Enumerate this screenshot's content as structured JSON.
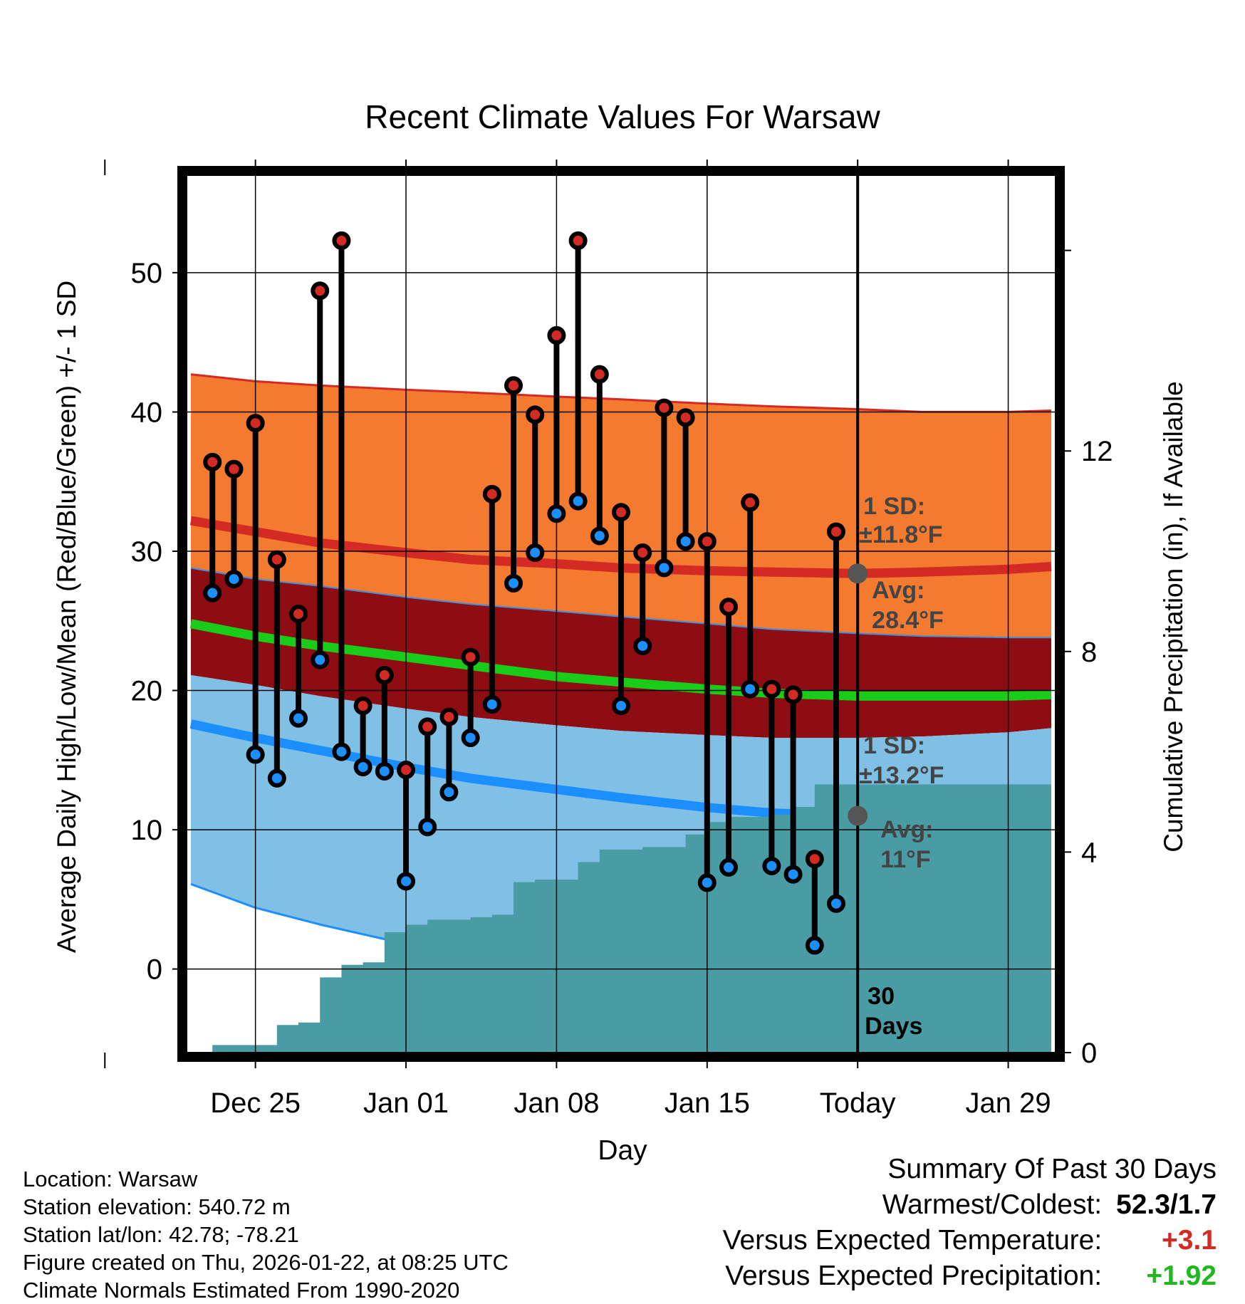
{
  "chart_data": {
    "type": "line",
    "title": "Recent Climate Values For Warsaw",
    "xlabel": "Day",
    "ylabel": "Average Daily High/Low/Mean (Red/Blue/Green) +/- 1 SD",
    "y2label": "Cumulative Precipitation (in), If Available",
    "xlim": [
      -3.2,
      37.2
    ],
    "ylim": [
      -6,
      57
    ],
    "y2lim": [
      0,
      17.5
    ],
    "yticks": [
      "0",
      "10",
      "20",
      "30",
      "40",
      "50"
    ],
    "y2ticks": [
      "0",
      "4",
      "8",
      "12"
    ],
    "xtick_labels": [
      {
        "day": 0,
        "label": "Dec 25"
      },
      {
        "day": 7,
        "label": "Jan 01"
      },
      {
        "day": 14,
        "label": "Jan 08"
      },
      {
        "day": 21,
        "label": "Jan 15"
      },
      {
        "day": 28,
        "label": "Today"
      },
      {
        "day": 35,
        "label": "Jan 29"
      }
    ],
    "daily_obs": {
      "days": [
        -2,
        -1,
        0,
        1,
        2,
        3,
        4,
        5,
        6,
        7,
        8,
        9,
        10,
        11,
        12,
        13,
        14,
        15,
        16,
        17,
        18,
        19,
        20,
        21,
        22,
        23,
        24,
        25,
        26,
        27
      ],
      "highs": [
        36.4,
        35.9,
        39.2,
        29.4,
        25.5,
        48.7,
        52.3,
        18.9,
        21.1,
        14.3,
        17.4,
        18.1,
        22.4,
        34.1,
        41.9,
        39.8,
        45.5,
        52.3,
        42.7,
        32.8,
        29.9,
        40.3,
        39.6,
        30.7,
        26.0,
        33.5,
        20.1,
        19.7,
        7.9,
        31.4
      ],
      "lows": [
        27.0,
        28.0,
        15.4,
        13.7,
        18.0,
        22.2,
        15.6,
        14.5,
        14.2,
        6.3,
        10.2,
        12.7,
        16.6,
        19.0,
        27.7,
        29.9,
        32.7,
        33.6,
        31.1,
        18.9,
        23.2,
        28.8,
        30.7,
        6.2,
        7.3,
        20.1,
        7.4,
        6.8,
        1.7,
        4.7
      ]
    },
    "normals": {
      "days": [
        -3,
        0,
        3,
        7,
        10,
        14,
        17,
        21,
        24,
        28,
        31,
        35,
        37
      ],
      "high_avg": [
        32.2,
        31.4,
        30.6,
        29.9,
        29.4,
        29.1,
        28.8,
        28.6,
        28.5,
        28.4,
        28.5,
        28.7,
        28.9
      ],
      "high_upper": [
        42.7,
        42.2,
        41.9,
        41.6,
        41.4,
        41.1,
        40.9,
        40.6,
        40.4,
        40.2,
        40.0,
        40.0,
        40.1
      ],
      "high_lower": [
        28.8,
        28.0,
        27.5,
        26.7,
        26.2,
        25.7,
        25.3,
        24.8,
        24.4,
        24.1,
        23.9,
        23.8,
        23.8
      ],
      "mean_avg": [
        24.8,
        23.9,
        23.2,
        22.4,
        21.8,
        21.0,
        20.6,
        20.1,
        19.8,
        19.6,
        19.6,
        19.6,
        19.7
      ],
      "low_upper": [
        21.1,
        20.4,
        19.6,
        18.7,
        18.1,
        17.5,
        17.1,
        16.8,
        16.6,
        16.6,
        16.7,
        17.0,
        17.3
      ],
      "low_avg": [
        17.6,
        16.6,
        15.7,
        14.5,
        13.7,
        12.9,
        12.3,
        11.6,
        11.2,
        11.0,
        10.8,
        10.8,
        10.8
      ],
      "low_lower": [
        6.1,
        4.4,
        3.2,
        1.8,
        0.8,
        -0.5,
        -1.5,
        -2.5,
        -3.3,
        -4.0,
        -4.5,
        -5.0,
        -5.3
      ]
    },
    "precip_cumulative": {
      "days": [
        -3,
        -2,
        -1,
        0,
        1,
        2,
        3,
        4,
        5,
        6,
        7,
        8,
        9,
        10,
        11,
        12,
        13,
        14,
        15,
        16,
        17,
        18,
        19,
        20,
        21,
        22,
        23,
        24,
        25,
        26,
        27,
        28,
        29,
        30,
        37
      ],
      "values": [
        0.0,
        0.15,
        0.15,
        0.15,
        0.55,
        0.6,
        1.5,
        1.75,
        1.8,
        2.4,
        2.55,
        2.65,
        2.65,
        2.7,
        2.75,
        3.4,
        3.45,
        3.45,
        3.8,
        4.05,
        4.05,
        4.1,
        4.1,
        4.35,
        4.6,
        4.7,
        4.7,
        4.75,
        4.9,
        5.35,
        5.35,
        5.35,
        5.35,
        5.35,
        5.35
      ]
    },
    "annotations": {
      "high_sd": "1 SD:",
      "high_sd_value": "±11.8°F",
      "high_avg_label": "Avg:",
      "high_avg_value": "28.4°F",
      "low_sd": "1 SD:",
      "low_sd_value": "±13.2°F",
      "low_avg_label": "Avg:",
      "low_avg_value": "11°F",
      "window_label": "30",
      "window_label2": "Days"
    },
    "marker_today": {
      "day": 28,
      "high_avg": 28.4,
      "low_avg": 11.0
    },
    "colors": {
      "high_band": "#f47a30",
      "high_line": "#d42a24",
      "mean_band": "#8d0d12",
      "mean_line": "#19cc19",
      "low_band": "#80c0e5",
      "low_line": "#1c8fff",
      "precip": "#4a9ca4",
      "high_dot": "#d42a24",
      "low_dot": "#1c8fff"
    }
  },
  "metadata": {
    "location": "Location: Warsaw",
    "elevation": "Station elevation: 540.72 m",
    "latlon": "Station lat/lon: 42.78; -78.21",
    "created": "Figure created on Thu, 2026-01-22, at 08:25 UTC",
    "normals": "Climate Normals Estimated From 1990-2020"
  },
  "summary": {
    "title": "Summary Of Past 30 Days",
    "warm_cold_label": "Warmest/Coldest:",
    "warm_cold_value": "52.3/1.7",
    "temp_label": "Versus Expected Temperature:",
    "temp_value": "+3.1",
    "temp_color": "#d42a24",
    "precip_label": "Versus Expected Precipitation:",
    "precip_value": "+1.92",
    "precip_color": "#1fb81f"
  }
}
